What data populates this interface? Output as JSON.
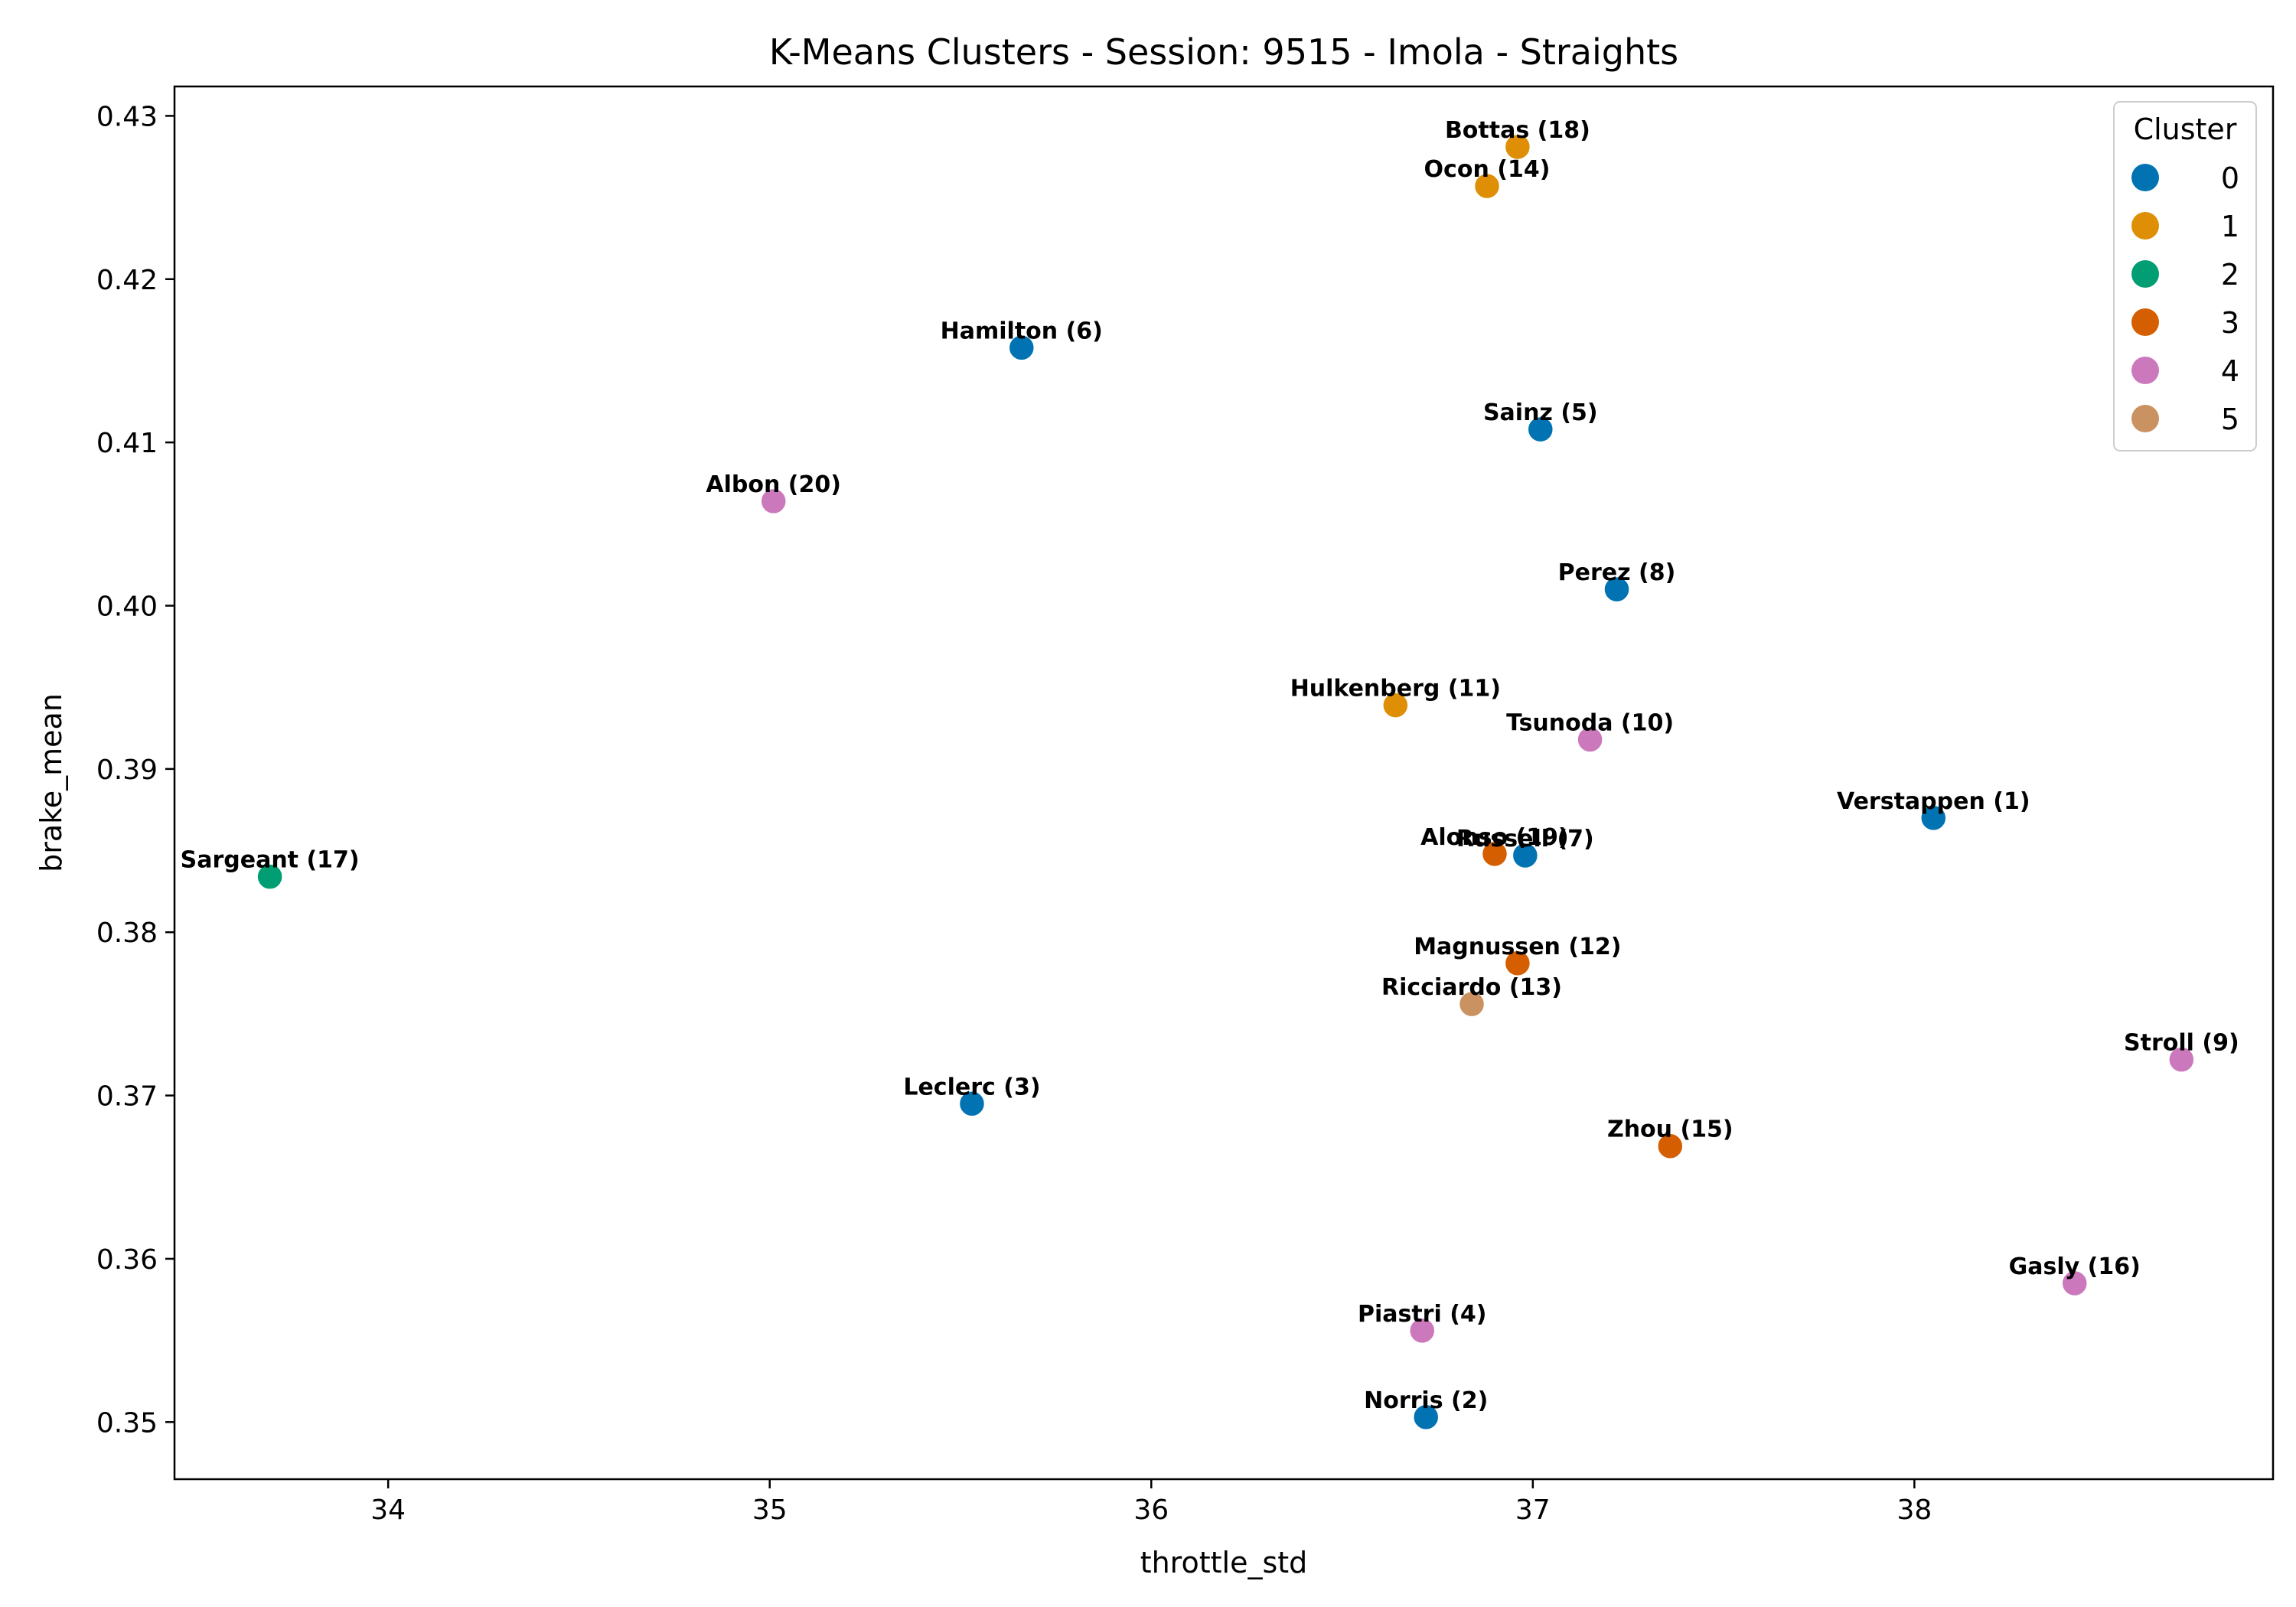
{
  "chart_data": {
    "type": "scatter",
    "title": "K-Means Clusters - Session: 9515 - Imola - Straights",
    "xlabel": "throttle_std",
    "ylabel": "brake_mean",
    "xlim": [
      33.44,
      38.94
    ],
    "ylim": [
      0.3465,
      0.4318
    ],
    "xticks": [
      34,
      35,
      36,
      37,
      38
    ],
    "yticks": [
      0.35,
      0.36,
      0.37,
      0.38,
      0.39,
      0.4,
      0.41,
      0.42,
      0.43
    ],
    "ytick_labels": [
      "0.35",
      "0.36",
      "0.37",
      "0.38",
      "0.39",
      "0.40",
      "0.41",
      "0.42",
      "0.43"
    ],
    "grid": false,
    "legend": {
      "title": "Cluster",
      "position": "top-right",
      "entries": [
        {
          "label": "0",
          "color": "#0173b2"
        },
        {
          "label": "1",
          "color": "#de8f05"
        },
        {
          "label": "2",
          "color": "#029e73"
        },
        {
          "label": "3",
          "color": "#d55e00"
        },
        {
          "label": "4",
          "color": "#cc78bc"
        },
        {
          "label": "5",
          "color": "#ca9161"
        }
      ]
    },
    "points": [
      {
        "label": "Bottas (18)",
        "x": 36.96,
        "y": 0.4281,
        "cluster": 1
      },
      {
        "label": "Ocon (14)",
        "x": 36.88,
        "y": 0.4257,
        "cluster": 1
      },
      {
        "label": "Hamilton (6)",
        "x": 35.66,
        "y": 0.4158,
        "cluster": 0
      },
      {
        "label": "Sainz (5)",
        "x": 37.02,
        "y": 0.4108,
        "cluster": 0
      },
      {
        "label": "Albon (20)",
        "x": 35.01,
        "y": 0.4064,
        "cluster": 4
      },
      {
        "label": "Perez (8)",
        "x": 37.22,
        "y": 0.401,
        "cluster": 0
      },
      {
        "label": "Hulkenberg (11)",
        "x": 36.64,
        "y": 0.3939,
        "cluster": 1
      },
      {
        "label": "Tsunoda (10)",
        "x": 37.15,
        "y": 0.3918,
        "cluster": 4
      },
      {
        "label": "Verstappen (1)",
        "x": 38.05,
        "y": 0.387,
        "cluster": 0
      },
      {
        "label": "Alonso (19)",
        "x": 36.9,
        "y": 0.3848,
        "cluster": 3
      },
      {
        "label": "Russell (7)",
        "x": 36.98,
        "y": 0.3847,
        "cluster": 0
      },
      {
        "label": "Sargeant (17)",
        "x": 33.69,
        "y": 0.3834,
        "cluster": 2
      },
      {
        "label": "Magnussen (12)",
        "x": 36.96,
        "y": 0.3781,
        "cluster": 3
      },
      {
        "label": "Ricciardo (13)",
        "x": 36.84,
        "y": 0.3756,
        "cluster": 5
      },
      {
        "label": "Stroll (9)",
        "x": 38.7,
        "y": 0.3722,
        "cluster": 4
      },
      {
        "label": "Leclerc (3)",
        "x": 35.53,
        "y": 0.3695,
        "cluster": 0
      },
      {
        "label": "Zhou (15)",
        "x": 37.36,
        "y": 0.3669,
        "cluster": 3
      },
      {
        "label": "Gasly (16)",
        "x": 38.42,
        "y": 0.3585,
        "cluster": 4
      },
      {
        "label": "Piastri (4)",
        "x": 36.71,
        "y": 0.3556,
        "cluster": 4
      },
      {
        "label": "Norris (2)",
        "x": 36.72,
        "y": 0.3503,
        "cluster": 0
      }
    ]
  }
}
